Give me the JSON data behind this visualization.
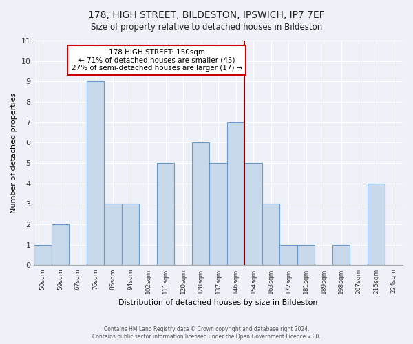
{
  "title": "178, HIGH STREET, BILDESTON, IPSWICH, IP7 7EF",
  "subtitle": "Size of property relative to detached houses in Bildeston",
  "xlabel": "Distribution of detached houses by size in Bildeston",
  "ylabel": "Number of detached properties",
  "footer_line1": "Contains HM Land Registry data © Crown copyright and database right 2024.",
  "footer_line2": "Contains public sector information licensed under the Open Government Licence v3.0.",
  "bin_labels": [
    "50sqm",
    "59sqm",
    "67sqm",
    "76sqm",
    "85sqm",
    "94sqm",
    "102sqm",
    "111sqm",
    "120sqm",
    "128sqm",
    "137sqm",
    "146sqm",
    "154sqm",
    "163sqm",
    "172sqm",
    "181sqm",
    "189sqm",
    "198sqm",
    "207sqm",
    "215sqm",
    "224sqm"
  ],
  "bin_values": [
    1,
    2,
    0,
    9,
    3,
    3,
    0,
    5,
    0,
    6,
    5,
    7,
    5,
    3,
    1,
    1,
    0,
    1,
    0,
    4,
    0
  ],
  "property_line_x": 11.5,
  "annotation_title": "178 HIGH STREET: 150sqm",
  "annotation_line1": "← 71% of detached houses are smaller (45)",
  "annotation_line2": "27% of semi-detached houses are larger (17) →",
  "bar_color": "#c9d9ec",
  "bar_edge_color": "#6699cc",
  "property_line_color": "#8b0000",
  "annotation_box_color": "#ffffff",
  "annotation_box_edge_color": "#cc0000",
  "ylim": [
    0,
    11
  ],
  "yticks": [
    0,
    1,
    2,
    3,
    4,
    5,
    6,
    7,
    8,
    9,
    10,
    11
  ],
  "background_color": "#eef2f8"
}
